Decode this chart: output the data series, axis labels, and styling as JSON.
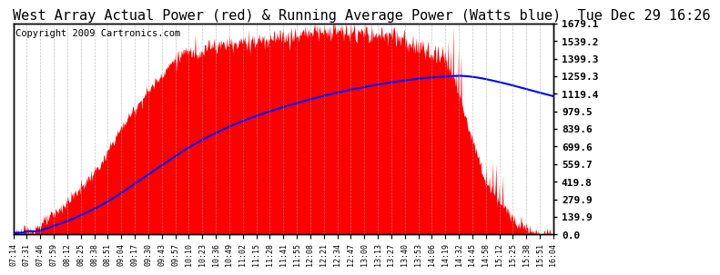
{
  "title": "West Array Actual Power (red) & Running Average Power (Watts blue)  Tue Dec 29 16:26",
  "copyright": "Copyright 2009 Cartronics.com",
  "ylabel_right_values": [
    1679.1,
    1539.2,
    1399.3,
    1259.3,
    1119.4,
    979.5,
    839.6,
    699.6,
    559.7,
    419.8,
    279.9,
    139.9,
    0.0
  ],
  "ymax": 1679.1,
  "ymin": 0.0,
  "bg_color": "#ffffff",
  "fill_color": "#ff0000",
  "avg_line_color": "#0000ff",
  "grid_color": "#aaaaaa",
  "title_fontsize": 11,
  "copyright_fontsize": 7.5,
  "tick_labels": [
    "07:14",
    "07:31",
    "07:46",
    "07:59",
    "08:12",
    "08:25",
    "08:38",
    "08:51",
    "09:04",
    "09:17",
    "09:30",
    "09:43",
    "09:57",
    "10:10",
    "10:23",
    "10:36",
    "10:49",
    "11:02",
    "11:15",
    "11:28",
    "11:41",
    "11:55",
    "12:08",
    "12:21",
    "12:34",
    "12:47",
    "13:00",
    "13:13",
    "13:27",
    "13:40",
    "13:53",
    "14:06",
    "14:19",
    "14:32",
    "14:45",
    "14:58",
    "15:12",
    "15:25",
    "15:38",
    "15:51",
    "16:04"
  ],
  "n_ticks": 41,
  "n_points": 820
}
